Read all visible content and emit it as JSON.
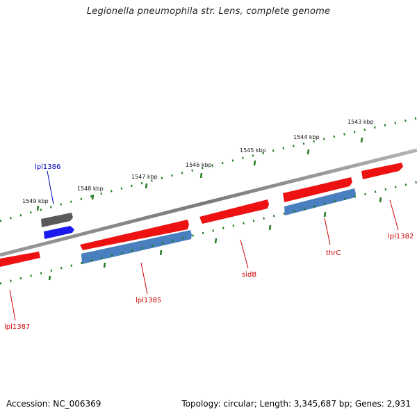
{
  "header": {
    "title": "Legionella pneumophila str. Lens, complete genome"
  },
  "footer": {
    "accession": "Accession: NC_006369",
    "summary": "Topology: circular; Length: 3,345,687 bp; Genes: 2,931"
  },
  "colors": {
    "backbone": "#8a8a8a",
    "tick": "#1f7a1f",
    "forward_gene": "#ee1111",
    "reverse_gene": "#4a7fbf",
    "dark_feature": "#5a5a5a",
    "highlight_feature": "#1a1aee",
    "gene_label": "#cc0000",
    "highlight_label": "#0000bb"
  },
  "scale_labels": [
    "1543 kbp",
    "1544 kbp",
    "1545 kbp",
    "1546 kbp",
    "1547 kbp",
    "1548 kbp",
    "1549 kbp"
  ],
  "gene_labels": [
    "lpl1386",
    "lpl1382",
    "thrC",
    "sidB",
    "lpl1385",
    "lpl1387"
  ]
}
